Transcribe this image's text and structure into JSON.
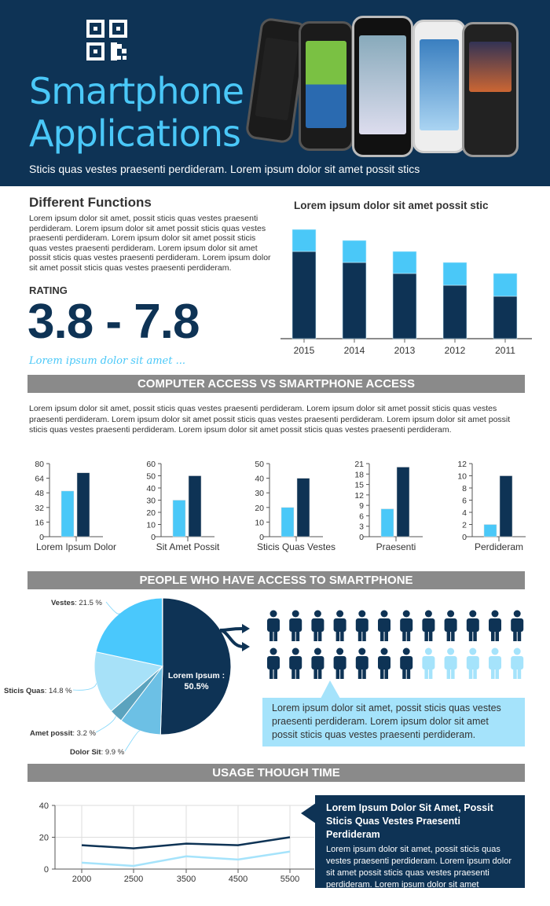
{
  "header": {
    "title_line1": "Smartphone",
    "title_line2": "Applications",
    "subtitle": "Sticis quas vestes praesenti perdideram. Lorem ipsum dolor sit amet possit stics",
    "icon": "qr-code-icon"
  },
  "functions": {
    "heading": "Different Functions",
    "body": "Lorem ipsum dolor sit amet, possit sticis quas vestes praesenti perdideram. Lorem ipsum dolor sit amet possit sticis quas vestes praesenti perdideram. Lorem ipsum dolor sit amet possit sticis quas vestes praesenti perdideram. Lorem ipsum dolor sit amet possit sticis quas vestes praesenti perdideram. Lorem ipsum dolor sit amet possit sticis quas vestes praesenti perdideram.",
    "rating_label": "RATING",
    "rating_value": "3.8 - 7.8",
    "tagline": "Lorem ipsum dolor sit amet ..."
  },
  "colors": {
    "navy": "#0e3355",
    "cyan": "#4ac8f8",
    "light": "#a5e3fb",
    "gray_banner": "#8a8a8a"
  },
  "sections": {
    "computer": "COMPUTER ACCESS VS SMARTPHONE ACCESS",
    "computer_body": "Lorem ipsum dolor sit amet, possit sticis quas vestes praesenti perdideram. Lorem ipsum dolor sit amet possit sticis quas vestes praesenti perdideram. Lorem ipsum dolor sit amet possit sticis quas vestes praesenti perdideram. Lorem ipsum dolor sit amet possit sticis quas vestes praesenti perdideram. Lorem ipsum dolor sit amet possit sticis quas vestes praesenti perdideram.",
    "people": "PEOPLE WHO HAVE ACCESS TO SMARTPHONE",
    "people_callout": "Lorem ipsum dolor sit amet, possit sticis quas vestes praesenti perdideram. Lorem ipsum dolor sit amet possit sticis quas vestes praesenti perdideram.",
    "usage": "USAGE THOUGH TIME",
    "usage_box_title": "Lorem Ipsum Dolor Sit Amet, Possit Sticis Quas Vestes Praesenti Perdideram",
    "usage_box_body": "Lorem ipsum dolor sit amet, possit sticis quas vestes praesenti perdideram. Lorem ipsum dolor sit amet possit sticis quas vestes praesenti perdideram. Lorem ipsum dolor sit amet"
  },
  "people": {
    "total": 24,
    "highlighted": 19
  },
  "chart_data": [
    {
      "type": "bar",
      "stacked": true,
      "title": "Lorem ipsum dolor sit amet possit stic",
      "categories": [
        "2015",
        "2014",
        "2013",
        "2012",
        "2011"
      ],
      "series": [
        {
          "values": [
            111,
            97,
            83,
            68,
            54
          ],
          "color": "#0e3355"
        },
        {
          "values": [
            28,
            28,
            28,
            29,
            29
          ],
          "color": "#4ac8f8"
        }
      ]
    },
    {
      "type": "bar",
      "categories": [
        "Lorem Ipsum Dolor"
      ],
      "ylim": [
        0,
        80
      ],
      "yticks": [
        0,
        16,
        32,
        48,
        64,
        80
      ],
      "series": [
        {
          "values": [
            50
          ],
          "color": "#4ac8f8"
        },
        {
          "values": [
            70
          ],
          "color": "#0e3355"
        }
      ]
    },
    {
      "type": "bar",
      "categories": [
        "Sit Amet Possit"
      ],
      "ylim": [
        0,
        60
      ],
      "yticks": [
        0,
        10,
        20,
        30,
        40,
        50,
        60
      ],
      "series": [
        {
          "values": [
            30
          ],
          "color": "#4ac8f8"
        },
        {
          "values": [
            50
          ],
          "color": "#0e3355"
        }
      ]
    },
    {
      "type": "bar",
      "categories": [
        "Sticis Quas Vestes"
      ],
      "ylim": [
        0,
        50
      ],
      "yticks": [
        0,
        10,
        20,
        30,
        40,
        50
      ],
      "series": [
        {
          "values": [
            20
          ],
          "color": "#4ac8f8"
        },
        {
          "values": [
            40
          ],
          "color": "#0e3355"
        }
      ]
    },
    {
      "type": "bar",
      "categories": [
        "Praesenti"
      ],
      "ylim": [
        0,
        21
      ],
      "yticks": [
        0,
        3,
        6,
        9,
        12,
        15,
        18,
        21
      ],
      "series": [
        {
          "values": [
            8
          ],
          "color": "#4ac8f8"
        },
        {
          "values": [
            20
          ],
          "color": "#0e3355"
        }
      ]
    },
    {
      "type": "bar",
      "categories": [
        "Perdideram"
      ],
      "ylim": [
        0,
        12
      ],
      "yticks": [
        0,
        2,
        4,
        6,
        8,
        10,
        12
      ],
      "series": [
        {
          "values": [
            2
          ],
          "color": "#4ac8f8"
        },
        {
          "values": [
            10
          ],
          "color": "#0e3355"
        }
      ]
    },
    {
      "type": "pie",
      "slices": [
        {
          "label": "Lorem Ipsum",
          "text": "Lorem Ipsum :",
          "pct_text": "50.5%",
          "value": 50.5,
          "color": "#0e3355"
        },
        {
          "label": "Dolor Sit",
          "pct_text": "9.9 %",
          "value": 9.9,
          "color": "#6cc0e5"
        },
        {
          "label": "Amet possit",
          "pct_text": "3.2 %",
          "value": 3.2,
          "color": "#5ba3be"
        },
        {
          "label": "Sticis Quas",
          "pct_text": "14.8 %",
          "value": 14.8,
          "color": "#a7e1f8"
        },
        {
          "label": "Vestes",
          "pct_text": "21.5 %",
          "value": 21.5,
          "color": "#4ac8fc"
        }
      ]
    },
    {
      "type": "line",
      "categories": [
        "2000",
        "2500",
        "3500",
        "4500",
        "5500"
      ],
      "ylim": [
        0,
        40
      ],
      "yticks": [
        0,
        20,
        40
      ],
      "grid": true,
      "series": [
        {
          "values": [
            15,
            13,
            16,
            15,
            20
          ],
          "color": "#0e3355"
        },
        {
          "values": [
            4,
            2,
            8,
            6,
            11
          ],
          "color": "#a5e3fb"
        }
      ]
    }
  ]
}
